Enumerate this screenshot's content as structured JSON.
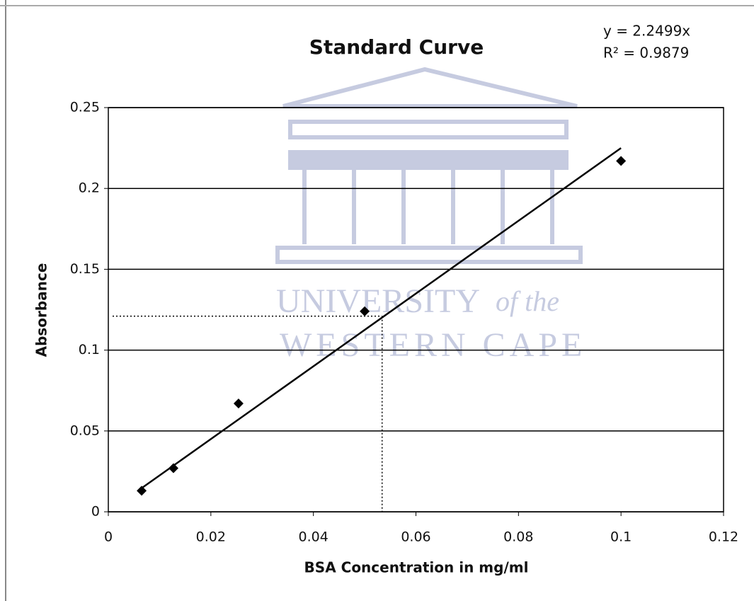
{
  "chart_data": {
    "type": "scatter",
    "title": "Standard Curve",
    "xlabel": "BSA Concentration in mg/ml",
    "ylabel": "Absorbance",
    "x": [
      0.0065,
      0.0127,
      0.0254,
      0.05,
      0.1
    ],
    "values": [
      0.013,
      0.027,
      0.067,
      0.124,
      0.217
    ],
    "color": "#000000",
    "xlim": [
      0,
      0.12
    ],
    "ylim": [
      0,
      0.25
    ],
    "xticks": [
      0,
      0.02,
      0.04,
      0.06,
      0.08,
      0.1,
      0.12
    ],
    "yticks": [
      0,
      0.05,
      0.1,
      0.15,
      0.2,
      0.25
    ],
    "grid": true,
    "trendline": {
      "slope": 2.2499,
      "x_range": [
        0.006,
        0.1
      ],
      "equation": "y = 2.2499x",
      "r2_label": "R² = 0.9879"
    },
    "reference_point": {
      "x": 0.0534,
      "y": 0.121
    },
    "watermark": [
      "UNIVERSITY",
      "of the",
      "WESTERN CAPE"
    ]
  }
}
